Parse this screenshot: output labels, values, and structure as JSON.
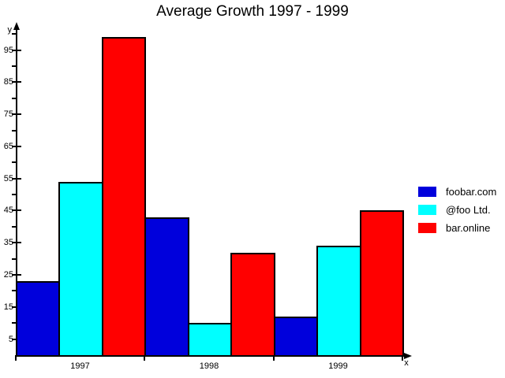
{
  "title": "Average Growth 1997 - 1999",
  "chart_data": {
    "type": "bar",
    "title": "Average Growth 1997 - 1999",
    "categories": [
      "1997",
      "1998",
      "1999"
    ],
    "series": [
      {
        "name": "foobar.com",
        "color": "#0000DC",
        "values": [
          23,
          43,
          12
        ]
      },
      {
        "name": "@foo Ltd.",
        "color": "#00FFFF",
        "values": [
          54,
          10,
          34
        ]
      },
      {
        "name": "bar.online",
        "color": "#FF0000",
        "values": [
          99,
          32,
          45
        ]
      }
    ],
    "xlabel": "x",
    "ylabel": "y",
    "ylim": [
      0,
      103
    ],
    "y_labeled_ticks": [
      5,
      15,
      25,
      35,
      45,
      55,
      65,
      75,
      85,
      95
    ],
    "y_minor_ticks": [
      10,
      20,
      30,
      40,
      50,
      60,
      70,
      80,
      90,
      100
    ],
    "grid": false,
    "bar_gap": 0,
    "legend_position": "right"
  },
  "legend": {
    "items": [
      {
        "label": "foobar.com",
        "color": "#0000DC"
      },
      {
        "label": "@foo Ltd.",
        "color": "#00FFFF"
      },
      {
        "label": "bar.online",
        "color": "#FF0000"
      }
    ]
  },
  "colors": {
    "background": "#FFFFFF",
    "axis": "#000000",
    "text": "#000000"
  }
}
